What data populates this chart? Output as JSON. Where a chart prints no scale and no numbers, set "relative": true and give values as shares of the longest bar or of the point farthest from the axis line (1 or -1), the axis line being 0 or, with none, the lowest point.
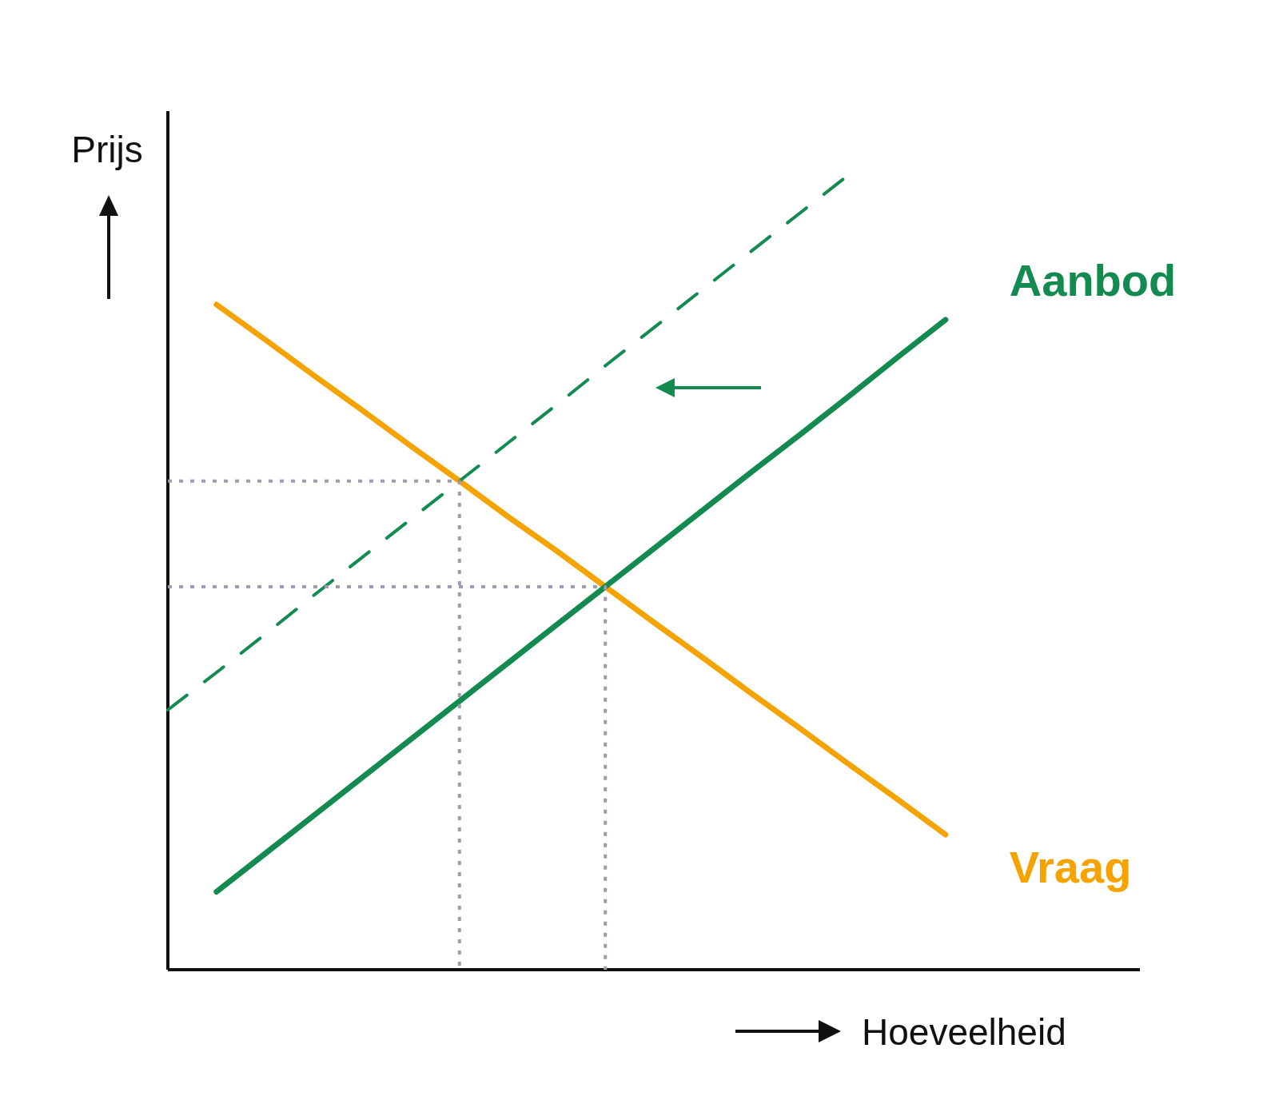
{
  "chart_data": {
    "type": "line",
    "relative": true,
    "xlabel": "Hoeveelheid",
    "ylabel": "Prijs",
    "marker": "none",
    "categories": [
      null,
      null,
      null,
      null,
      null,
      null,
      null,
      null,
      null,
      null,
      null,
      null,
      null,
      null,
      null,
      null,
      null,
      null,
      null,
      null,
      null
    ],
    "series": [
      {
        "name": "Vraag",
        "color": "#f5a300",
        "line_style": "solid",
        "values": [
          null,
          0.837,
          0.793,
          0.748,
          0.704,
          0.659,
          0.615,
          0.57,
          0.527,
          0.482,
          0.437,
          0.393,
          0.348,
          0.304,
          0.259,
          0.215,
          0.17,
          null,
          null,
          null,
          null
        ]
      },
      {
        "name": "Aanbod",
        "color": "#138a4f",
        "line_style": "solid",
        "values": [
          null,
          0.098,
          0.146,
          0.194,
          0.242,
          0.29,
          0.338,
          0.386,
          0.434,
          0.482,
          0.53,
          0.578,
          0.626,
          0.673,
          0.721,
          0.77,
          0.818,
          null,
          null,
          null,
          null
        ]
      },
      {
        "color": "#138a4f",
        "line_style": "dashed",
        "values": [
          0.327,
          0.374,
          0.422,
          0.471,
          0.519,
          0.567,
          0.615,
          0.663,
          0.711,
          0.76,
          0.808,
          0.856,
          0.904,
          0.952,
          1,
          null,
          null,
          null,
          null,
          null,
          null
        ]
      },
      {
        "type": "step",
        "color": "#a09cb0",
        "line_style": "dotted",
        "values": [
          0.615,
          0.615,
          0.615,
          0.615,
          0.615,
          0.615,
          0,
          null,
          null,
          null,
          null,
          null,
          null,
          null,
          null,
          null,
          null,
          null,
          null,
          null,
          null
        ]
      },
      {
        "type": "step",
        "color": "#a09cb0",
        "line_style": "dotted",
        "values": [
          0.482,
          0.482,
          0.482,
          0.482,
          0.482,
          0.482,
          0.482,
          0.482,
          0.482,
          0,
          null,
          null,
          null,
          null,
          null,
          null,
          null,
          null,
          null,
          null,
          null
        ]
      }
    ]
  }
}
